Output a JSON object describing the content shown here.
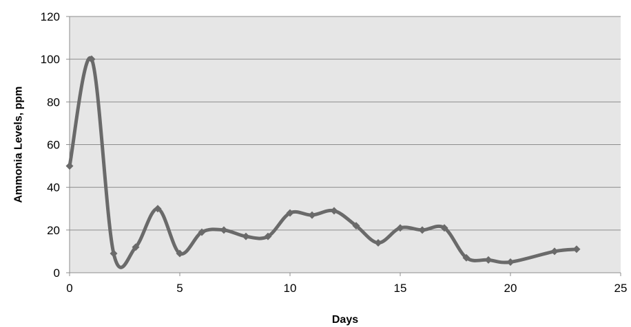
{
  "chart_data": {
    "type": "line",
    "title": "",
    "xlabel": "Days",
    "ylabel": "Ammonia  Levels, ppm",
    "xlim": [
      0,
      25
    ],
    "ylim": [
      0,
      120
    ],
    "x_ticks": [
      0,
      5,
      10,
      15,
      20,
      25
    ],
    "y_ticks": [
      0,
      20,
      40,
      60,
      80,
      100,
      120
    ],
    "grid": "horizontal",
    "legend": "none",
    "smooth": true,
    "marker": "diamond",
    "colors": {
      "plot_background": "#e6e6e6",
      "series_line": "#6a6a6a",
      "series_marker": "#6a6a6a",
      "gridline": "#8c8c8c"
    },
    "series": [
      {
        "x": [
          0,
          1,
          2,
          3,
          4,
          5,
          6,
          7,
          8,
          9,
          10,
          11,
          12,
          13,
          14,
          15,
          16,
          17,
          18,
          19,
          20,
          22,
          23
        ],
        "y": [
          50,
          100,
          9,
          12,
          30,
          9,
          19,
          20,
          17,
          17,
          28,
          27,
          29,
          22,
          14,
          21,
          20,
          21,
          7,
          6,
          5,
          10,
          11
        ]
      }
    ]
  }
}
